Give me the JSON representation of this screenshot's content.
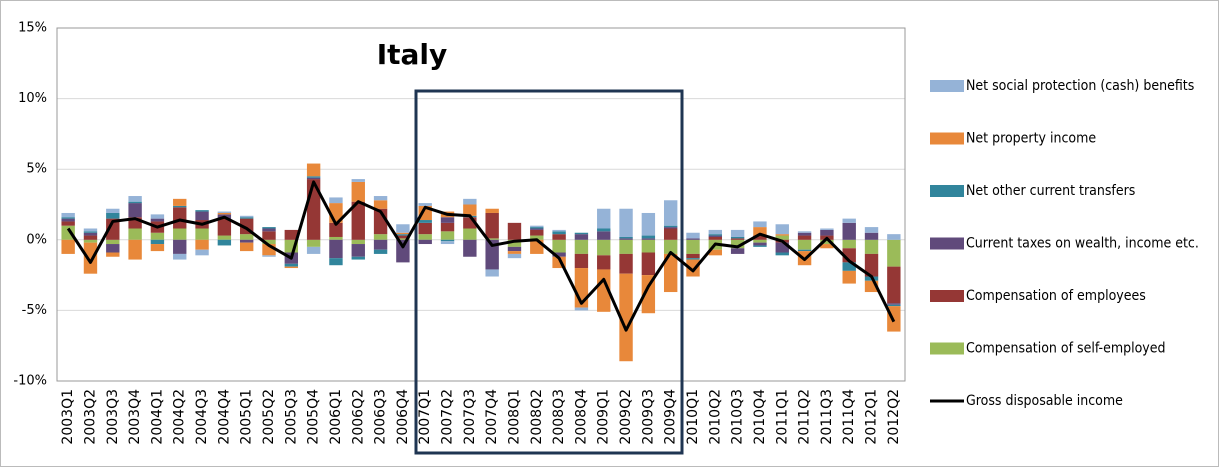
{
  "chart_data": {
    "type": "bar",
    "title": "Italy",
    "categories": [
      "2003Q1",
      "2003Q2",
      "2003Q3",
      "2003Q4",
      "2004Q1",
      "2004Q2",
      "2004Q3",
      "2004Q4",
      "2005Q1",
      "2005Q2",
      "2005Q3",
      "2005Q4",
      "2006Q1",
      "2006Q2",
      "2006Q3",
      "2006Q4",
      "2007Q1",
      "2007Q2",
      "2007Q3",
      "2007Q4",
      "2008Q1",
      "2008Q2",
      "2008Q3",
      "2008Q4",
      "2009Q1",
      "2009Q2",
      "2009Q3",
      "2009Q4",
      "2010Q1",
      "2010Q2",
      "2010Q3",
      "2010Q4",
      "2011Q1",
      "2011Q2",
      "2011Q3",
      "2011Q4",
      "2012Q1",
      "2012Q2"
    ],
    "series": [
      {
        "name": "Net social protection (cash) benefits",
        "color": "#95b3d7",
        "values": [
          0.3,
          0.2,
          0.3,
          0.4,
          0.3,
          -0.4,
          -0.4,
          0.1,
          0.1,
          -0.1,
          0.0,
          -0.5,
          0.4,
          0.2,
          0.3,
          0.6,
          0.2,
          -0.2,
          0.4,
          -0.5,
          -0.3,
          0.1,
          0.1,
          -0.2,
          1.4,
          2.0,
          1.6,
          1.8,
          0.4,
          0.3,
          0.5,
          0.4,
          0.7,
          0.1,
          0.1,
          0.3,
          0.4,
          0.4
        ]
      },
      {
        "name": "Net property income",
        "color": "#e8883a",
        "values": [
          -1.0,
          -2.2,
          -0.3,
          -1.4,
          -0.5,
          0.5,
          -0.7,
          0.1,
          -0.6,
          -0.8,
          -0.1,
          0.9,
          1.4,
          1.4,
          0.6,
          0.1,
          1.0,
          0.4,
          0.8,
          0.3,
          -0.2,
          -1.0,
          -0.8,
          -2.8,
          -3.0,
          -6.2,
          -2.7,
          -2.7,
          -1.2,
          -0.4,
          0.0,
          0.6,
          0.1,
          -1.0,
          -0.3,
          -0.9,
          -0.8,
          -1.8
        ]
      },
      {
        "name": "Net other current transfers",
        "color": "#31859c",
        "values": [
          0.1,
          0.1,
          0.4,
          0.1,
          -0.3,
          0.1,
          0.1,
          -0.4,
          0.1,
          0.1,
          -0.2,
          0.1,
          -0.5,
          -0.2,
          -0.3,
          0.1,
          0.2,
          -0.1,
          0.1,
          0.0,
          0.0,
          0.1,
          0.2,
          0.1,
          0.2,
          0.1,
          0.2,
          0.1,
          -0.1,
          0.1,
          0.1,
          -0.1,
          -0.2,
          -0.1,
          0.0,
          -0.6,
          -0.3,
          -0.1
        ]
      },
      {
        "name": "Current taxes on wealth, income etc.",
        "color": "#604a7b",
        "values": [
          0.2,
          0.2,
          -0.6,
          1.0,
          0.2,
          -1.0,
          0.6,
          0.3,
          -0.2,
          0.2,
          -0.8,
          0.1,
          -1.3,
          -0.9,
          -0.7,
          -1.6,
          -0.3,
          0.4,
          -1.2,
          -2.1,
          -0.3,
          0.1,
          -0.3,
          0.4,
          0.6,
          0.1,
          0.1,
          0.1,
          0.1,
          0.1,
          -0.4,
          -0.2,
          -0.7,
          0.2,
          0.4,
          1.2,
          0.5,
          -0.1
        ]
      },
      {
        "name": "Compensation of employees",
        "color": "#953735",
        "values": [
          0.3,
          0.3,
          1.5,
          0.8,
          0.8,
          1.5,
          0.6,
          1.2,
          1.1,
          0.6,
          0.7,
          4.3,
          1.0,
          2.7,
          1.8,
          0.2,
          0.8,
          0.6,
          0.8,
          1.8,
          1.2,
          0.4,
          0.4,
          -1.0,
          -1.0,
          -1.4,
          -1.6,
          0.8,
          -0.3,
          0.2,
          0.1,
          0.3,
          -0.2,
          0.3,
          0.3,
          -1.0,
          -1.6,
          -2.6
        ]
      },
      {
        "name": "Compensation of self-employed",
        "color": "#9bbb59",
        "values": [
          1.0,
          -0.2,
          -0.3,
          0.8,
          0.5,
          0.8,
          0.8,
          0.3,
          0.4,
          -0.3,
          -0.9,
          -0.5,
          0.2,
          -0.3,
          0.4,
          0.1,
          0.4,
          0.6,
          0.8,
          0.1,
          -0.5,
          0.3,
          -0.9,
          -1.0,
          -1.1,
          -1.0,
          -0.9,
          -1.0,
          -1.0,
          -0.7,
          -0.6,
          -0.2,
          0.3,
          -0.7,
          -0.3,
          -0.6,
          -1.0,
          -1.9
        ]
      },
      {
        "name": "Gross disposable income",
        "color": "#000000",
        "type": "line",
        "values": [
          0.8,
          -1.6,
          1.3,
          1.5,
          0.9,
          1.4,
          1.1,
          1.6,
          0.8,
          -0.4,
          -1.3,
          4.1,
          1.1,
          2.7,
          2.0,
          -0.5,
          2.3,
          1.8,
          1.7,
          -0.4,
          -0.1,
          0.0,
          -1.3,
          -4.5,
          -2.8,
          -6.4,
          -3.3,
          -0.9,
          -2.2,
          -0.3,
          -0.5,
          0.4,
          -0.1,
          -1.4,
          0.1,
          -1.5,
          -2.6,
          -5.8
        ]
      }
    ],
    "ylim": [
      -10,
      15
    ],
    "yticks": [
      {
        "value": -10,
        "label": "-10%"
      },
      {
        "value": -5,
        "label": "-5%"
      },
      {
        "value": 0,
        "label": "0%"
      },
      {
        "value": 5,
        "label": "5%"
      },
      {
        "value": 10,
        "label": "10%"
      },
      {
        "value": 15,
        "label": "15%"
      }
    ],
    "grid": true,
    "legend": "right"
  }
}
